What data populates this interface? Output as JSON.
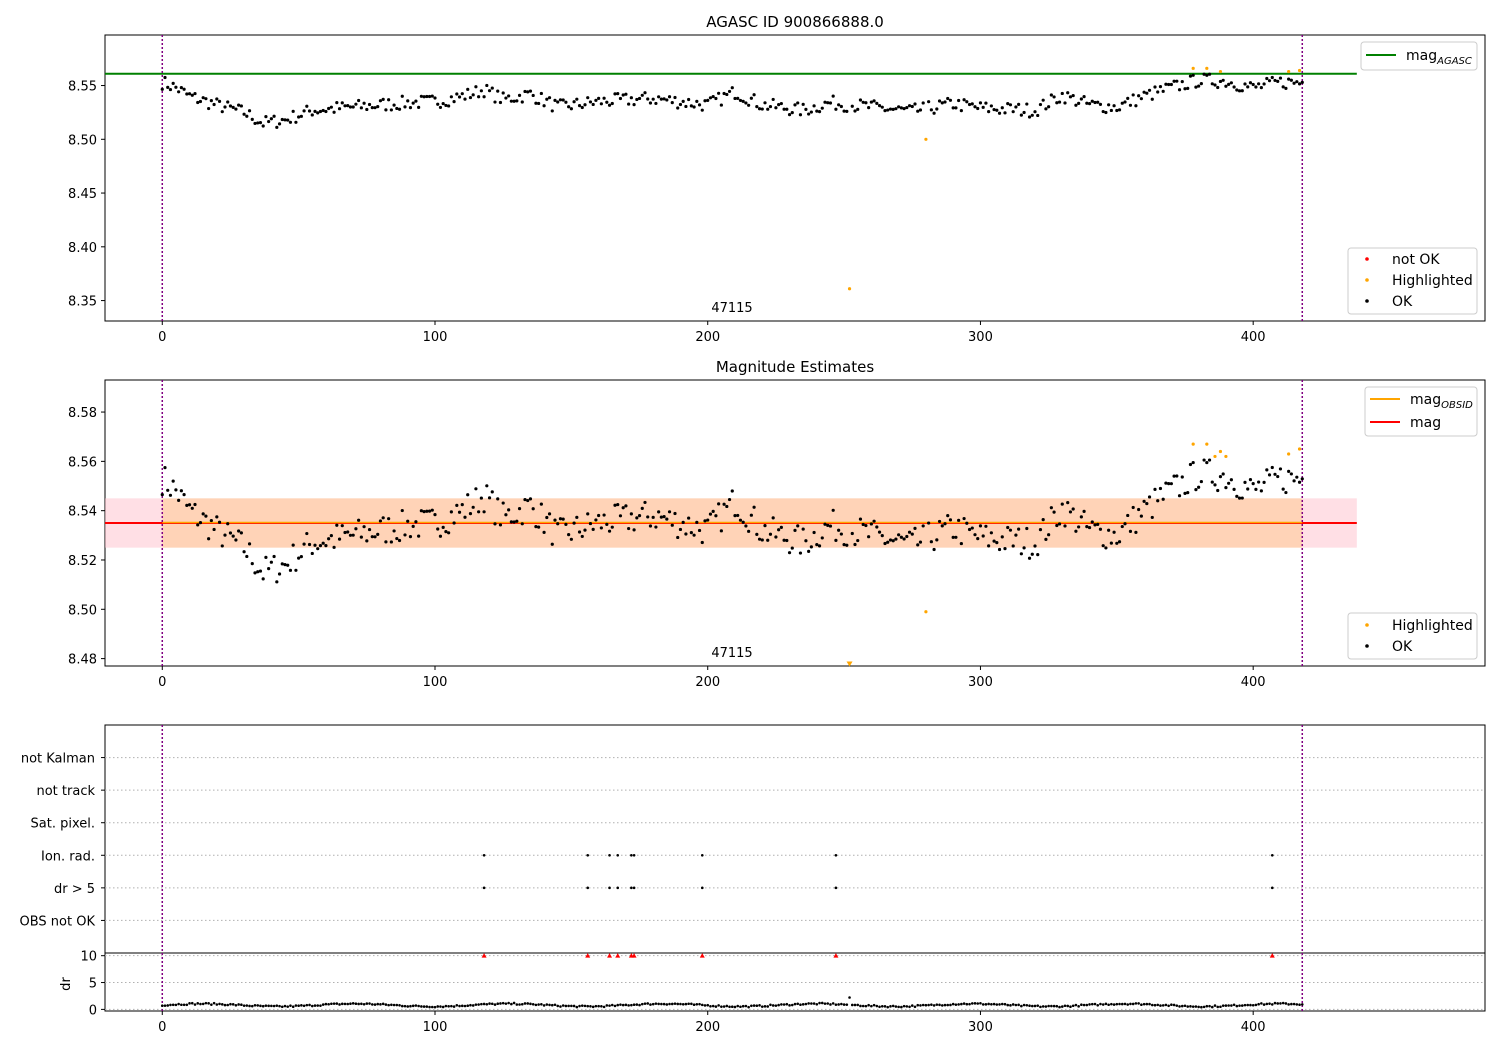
{
  "chart_data": [
    {
      "type": "scatter",
      "title": "AGASC ID 900866888.0",
      "xlim": [
        -21,
        485
      ],
      "ylim": [
        8.331,
        8.597
      ],
      "yticks": [
        "8.35",
        "8.40",
        "8.45",
        "8.50",
        "8.55"
      ],
      "ytick_values": [
        8.35,
        8.4,
        8.45,
        8.5,
        8.55
      ],
      "xticks": [
        "0",
        "100",
        "200",
        "300",
        "400"
      ],
      "xtick_values": [
        0,
        100,
        200,
        300,
        400
      ],
      "annotation": "47115",
      "annotation_x": 208,
      "hlines": [
        {
          "name": "mag",
          "sub": "AGASC",
          "value": 8.561,
          "color": "#008000"
        }
      ],
      "vlines": [
        0,
        418
      ],
      "legend_top": {
        "label": "mag",
        "sub": "AGASC",
        "placement": "upper right"
      },
      "legend_bottom": {
        "placement": "lower right",
        "entries": [
          {
            "label": "not OK",
            "color": "#ff0000"
          },
          {
            "label": "Highlighted",
            "color": "#ffa500"
          },
          {
            "label": "OK",
            "color": "#000000"
          }
        ]
      },
      "highlighted": [
        [
          252,
          8.361
        ],
        [
          280,
          8.5
        ],
        [
          378,
          8.566
        ],
        [
          383,
          8.566
        ],
        [
          388,
          8.563
        ],
        [
          413,
          8.563
        ],
        [
          417,
          8.564
        ]
      ]
    },
    {
      "type": "scatter",
      "title": "Magnitude Estimates",
      "xlim": [
        -21,
        485
      ],
      "ylim": [
        8.477,
        8.593
      ],
      "yticks": [
        "8.48",
        "8.50",
        "8.52",
        "8.54",
        "8.56",
        "8.58"
      ],
      "ytick_values": [
        8.48,
        8.5,
        8.52,
        8.54,
        8.56,
        8.58
      ],
      "xticks": [
        "0",
        "100",
        "200",
        "300",
        "400"
      ],
      "xtick_values": [
        0,
        100,
        200,
        300,
        400
      ],
      "annotation": "47115",
      "annotation_x": 208,
      "mag": 8.535,
      "mag_band": [
        8.525,
        8.545
      ],
      "band_x": [
        0,
        438
      ],
      "vlines": [
        0,
        418
      ],
      "legend_top": {
        "placement": "upper right",
        "entries": [
          {
            "label": "mag",
            "sub": "OBSID",
            "color": "#ffa500"
          },
          {
            "label": "mag",
            "color": "#ff0000"
          }
        ]
      },
      "legend_bottom": {
        "placement": "lower right",
        "entries": [
          {
            "label": "Highlighted",
            "color": "#ffa500"
          },
          {
            "label": "OK",
            "color": "#000000"
          }
        ]
      },
      "highlighted": [
        [
          280,
          8.499
        ],
        [
          378,
          8.567
        ],
        [
          383,
          8.567
        ],
        [
          386,
          8.562
        ],
        [
          388,
          8.564
        ],
        [
          390,
          8.562
        ],
        [
          413,
          8.563
        ],
        [
          417,
          8.565
        ]
      ],
      "offscale_marker": [
        252,
        8.478
      ]
    },
    {
      "type": "scatter",
      "categories": [
        "OBS not OK",
        "dr > 5",
        "Ion. rad.",
        "Sat. pixel.",
        "not track",
        "not Kalman"
      ],
      "xlim": [
        -21,
        485
      ],
      "xticks": [
        "0",
        "100",
        "200",
        "300",
        "400"
      ],
      "xtick_values": [
        0,
        100,
        200,
        300,
        400
      ],
      "vlines": [
        0,
        418
      ],
      "flags": {
        "Ion. rad.": [
          118,
          156,
          164,
          167,
          172,
          173,
          198,
          247,
          407
        ],
        "dr > 5": [
          118,
          156,
          164,
          167,
          172,
          173,
          198,
          247,
          407
        ]
      }
    },
    {
      "type": "scatter",
      "ylabel": "dr",
      "ylim": [
        -0.3,
        10.5
      ],
      "yticks": [
        "0",
        "5",
        "10"
      ],
      "ytick_values": [
        0,
        5,
        10
      ],
      "xlim": [
        -21,
        485
      ],
      "xticks": [
        "0",
        "100",
        "200",
        "300",
        "400"
      ],
      "xtick_values": [
        0,
        100,
        200,
        300,
        400
      ],
      "vlines": [
        0,
        418
      ],
      "capped_at": 10,
      "capped_x": [
        118,
        156,
        164,
        167,
        172,
        173,
        198,
        247,
        407
      ]
    }
  ]
}
